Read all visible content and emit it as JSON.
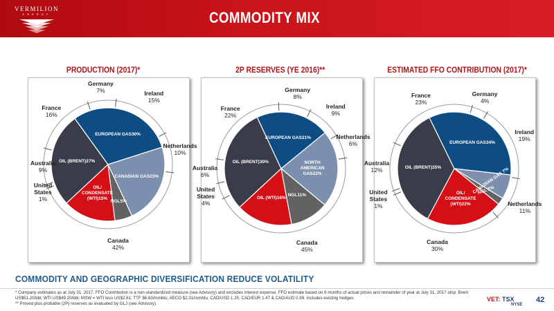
{
  "header": {
    "logo_text": "VERMILION",
    "logo_sub": "ENERGY",
    "title": "COMMODITY MIX"
  },
  "chart_data": [
    {
      "type": "pie",
      "title": "PRODUCTION (2017)*",
      "commodity_slices": [
        {
          "label": "OIL (BRENT)",
          "value": 27,
          "value_text": "27%",
          "color": "#3b3c4a"
        },
        {
          "label": "EUROPEAN GAS",
          "value": 30,
          "value_text": "30%",
          "color": "#0e4d83"
        },
        {
          "label": "CANADIAN GAS",
          "value": 23,
          "value_text": "23%",
          "color": "#7c8fae"
        },
        {
          "label": "NGL",
          "value": 5,
          "value_text": "5%",
          "color": "#626262"
        },
        {
          "label": "OIL/\nCONDENSATE\n(WTI)",
          "value": 15,
          "value_text": "15%",
          "color": "#d40f16"
        }
      ],
      "geo_slices": [
        {
          "name": "Australia",
          "value": 9,
          "value_text": "9%"
        },
        {
          "name": "France",
          "value": 16,
          "value_text": "16%"
        },
        {
          "name": "Germany",
          "value": 7,
          "value_text": "7%"
        },
        {
          "name": "Ireland",
          "value": 15,
          "value_text": "15%"
        },
        {
          "name": "Netherlands",
          "value": 10,
          "value_text": "10%"
        },
        {
          "name": "Canada",
          "value": 42,
          "value_text": "42%"
        },
        {
          "name": "United\nStates",
          "value": 1,
          "value_text": "1%"
        }
      ]
    },
    {
      "type": "pie",
      "title": "2P RESERVES (YE 2016)**",
      "commodity_slices": [
        {
          "label": "OIL (BRENT)",
          "value": 30,
          "value_text": "30%",
          "color": "#3b3c4a"
        },
        {
          "label": "EUROPEAN GAS",
          "value": 21,
          "value_text": "21%",
          "color": "#0e4d83"
        },
        {
          "label": "NORTH\nAMERICAN\nGAS",
          "value": 22,
          "value_text": "22%",
          "color": "#7c8fae"
        },
        {
          "label": "NGL",
          "value": 11,
          "value_text": "11%",
          "color": "#626262"
        },
        {
          "label": "OIL (WTI)",
          "value": 16,
          "value_text": "16%",
          "color": "#d40f16"
        }
      ],
      "geo_slices": [
        {
          "name": "Australia",
          "value": 6,
          "value_text": "6%"
        },
        {
          "name": "France",
          "value": 22,
          "value_text": "22%"
        },
        {
          "name": "Germany",
          "value": 8,
          "value_text": "8%"
        },
        {
          "name": "Ireland",
          "value": 9,
          "value_text": "9%"
        },
        {
          "name": "Netherlands",
          "value": 6,
          "value_text": "6%"
        },
        {
          "name": "Canada",
          "value": 45,
          "value_text": "45%"
        },
        {
          "name": "United\nStates",
          "value": 4,
          "value_text": "4%"
        }
      ]
    },
    {
      "type": "pie",
      "title": "ESTIMATED FFO CONTRIBUTION (2017)*",
      "commodity_slices": [
        {
          "label": "OIL (BRENT)",
          "value": 35,
          "value_text": "35%",
          "color": "#3b3c4a"
        },
        {
          "label": "EUROPEAN GAS",
          "value": 34,
          "value_text": "34%",
          "color": "#0e4d83"
        },
        {
          "label": "CANADIAN GAS 7%",
          "value": 7,
          "value_text": "",
          "color": "#7c8fae"
        },
        {
          "label": "NGL 2%",
          "value": 2,
          "value_text": "",
          "color": "#626262"
        },
        {
          "label": "OIL/\nCONDENSATE\n(WTI)",
          "value": 22,
          "value_text": "22%",
          "color": "#d40f16"
        }
      ],
      "geo_slices": [
        {
          "name": "Australia",
          "value": 12,
          "value_text": "12%"
        },
        {
          "name": "France",
          "value": 23,
          "value_text": "23%"
        },
        {
          "name": "Germany",
          "value": 4,
          "value_text": "4%"
        },
        {
          "name": "Ireland",
          "value": 19,
          "value_text": "19%"
        },
        {
          "name": "Netherlands",
          "value": 11,
          "value_text": "11%"
        },
        {
          "name": "Canada",
          "value": 30,
          "value_text": "30%"
        },
        {
          "name": "United\nStates",
          "value": 1,
          "value_text": "1%"
        }
      ]
    }
  ],
  "headline": "COMMODITY AND GEOGRAPHIC DIVERSIFICATION REDUCE VOLATILITY",
  "footnotes": {
    "line1": "* Company estimates as at July 31, 2017. FFO Contribution is a non-standardized measure (see Advisory) and excludes interest expense. FFO estimate based on 6 months of actual prices and remainder of year at July 31, 2017 strip:  Brent",
    "line2": "US$51.20/bbl;  WTI US$49.20/bbl; MSW = WTI less US$2.81;  TTF $6.63/mmbtu; AECO $2.31/mmbtu; CAD/USD 1.25; CAD/EUR 1.47 & CAD/AUD 0.99. Includes existing hedges.",
    "line3": "** Proved plus probable (2P) reserves as evaluated by GLJ (see Advisory)."
  },
  "listing": {
    "vet": "VET:",
    "tsx": "TSX",
    "nyse": "NYSE"
  },
  "page_number": "42"
}
